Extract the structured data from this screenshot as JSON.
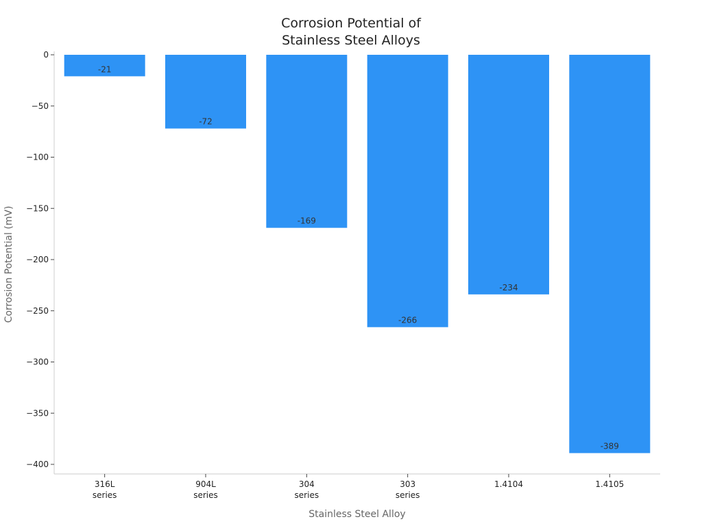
{
  "chart_data": {
    "type": "bar",
    "title_lines": [
      "Corrosion Potential of",
      "Stainless Steel Alloys"
    ],
    "xlabel": "Stainless Steel Alloy",
    "ylabel": "Corrosion Potential (mV)",
    "categories": [
      [
        "316L",
        "series"
      ],
      [
        "904L",
        "series"
      ],
      [
        "304",
        "series"
      ],
      [
        "303",
        "series"
      ],
      [
        "1.4104"
      ],
      [
        "1.4105"
      ]
    ],
    "values": [
      -21,
      -72,
      -169,
      -266,
      -234,
      -389
    ],
    "value_labels": [
      "-21",
      "-72",
      "-169",
      "-266",
      "-234",
      "-389"
    ],
    "ylim": [
      -408,
      0
    ],
    "yticks": [
      0,
      -50,
      -100,
      -150,
      -200,
      -250,
      -300,
      -350,
      -400
    ],
    "ytick_labels": [
      "0",
      "−50",
      "−100",
      "−150",
      "−200",
      "−250",
      "−300",
      "−350",
      "−400"
    ],
    "grid": false,
    "bar_color": "#2e93f5",
    "axis_color": "#cccccc",
    "tick_label_color": "#222222",
    "axis_label_color": "#666666",
    "value_label_color": "#333333",
    "title_color": "#222222"
  }
}
